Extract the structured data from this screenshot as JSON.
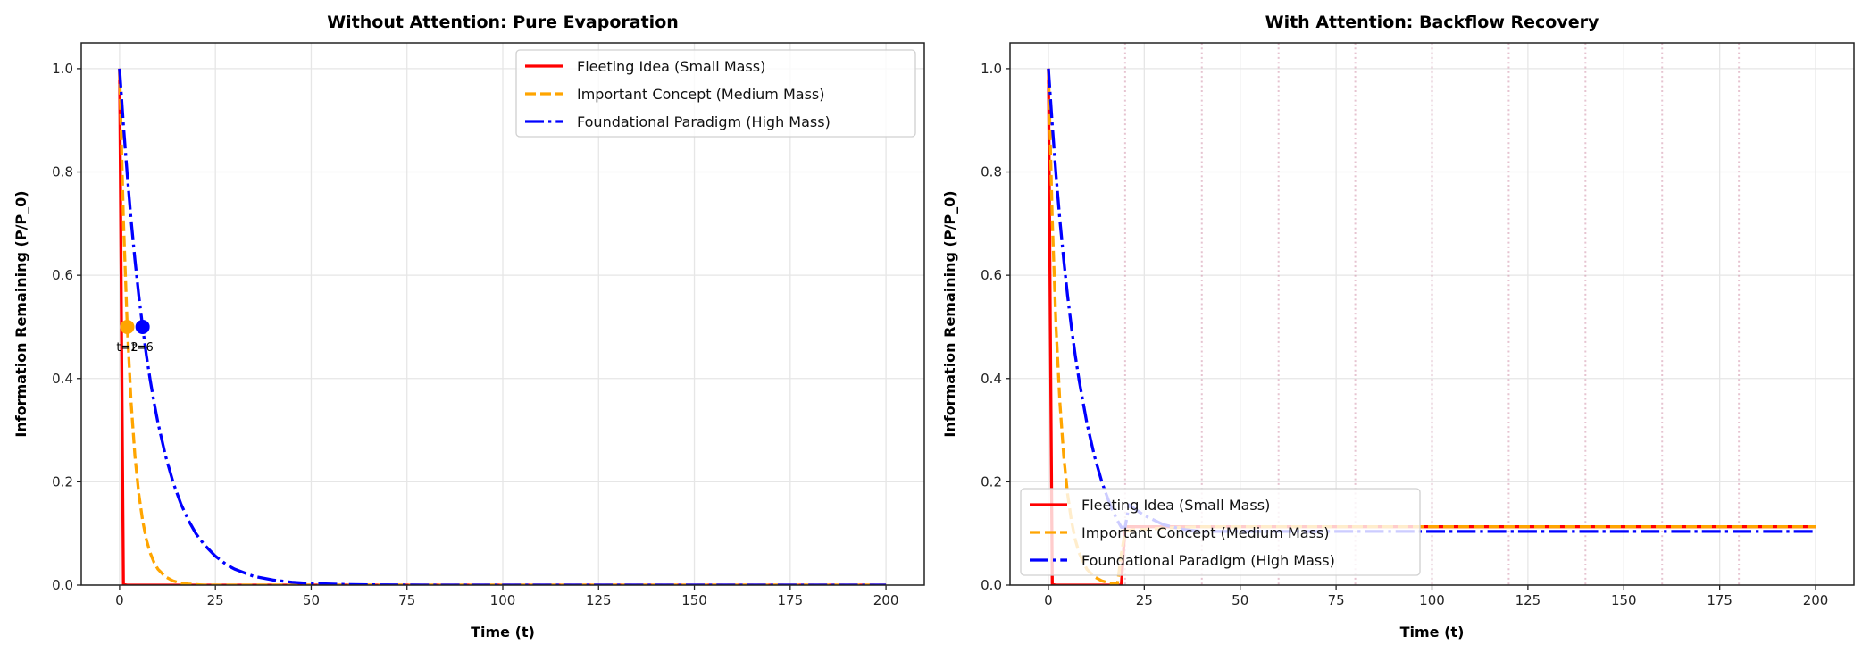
{
  "chart_data": [
    {
      "type": "line",
      "title": "Without Attention: Pure Evaporation",
      "xlabel": "Time (t)",
      "ylabel": "Information Remaining (P/P_0)",
      "xlim": [
        -10,
        210
      ],
      "ylim": [
        0,
        1.05
      ],
      "xticks": [
        0,
        25,
        50,
        75,
        100,
        125,
        150,
        175,
        200
      ],
      "yticks": [
        "0.0",
        "0.2",
        "0.4",
        "0.6",
        "0.8",
        "1.0"
      ],
      "grid": true,
      "legend": "top-right",
      "x": [
        0,
        1,
        2,
        3,
        4,
        5,
        6,
        7,
        8,
        9,
        10,
        12,
        14,
        16,
        18,
        20,
        22,
        25,
        28,
        30,
        35,
        40,
        45,
        50,
        60,
        70,
        80,
        100,
        125,
        150,
        175,
        200
      ],
      "series": [
        {
          "name": "Fleeting Idea (Small Mass)",
          "color": "#ff0000",
          "style": "solid",
          "values": [
            1,
            0.001,
            0,
            0,
            0,
            0,
            0,
            0,
            0,
            0,
            0,
            0,
            0,
            0,
            0,
            0,
            0,
            0,
            0,
            0,
            0,
            0,
            0,
            0,
            0,
            0,
            0,
            0,
            0,
            0,
            0,
            0
          ]
        },
        {
          "name": "Important Concept (Medium Mass)",
          "color": "#ffa500",
          "style": "dashed",
          "values": [
            1,
            0.707,
            0.5,
            0.354,
            0.25,
            0.177,
            0.125,
            0.088,
            0.0625,
            0.044,
            0.031,
            0.016,
            0.008,
            0.004,
            0.002,
            0.001,
            0,
            0,
            0,
            0,
            0,
            0,
            0,
            0,
            0,
            0,
            0,
            0,
            0,
            0,
            0,
            0
          ]
        },
        {
          "name": "Foundational Paradigm (High Mass)",
          "color": "#0000ff",
          "style": "dashdot",
          "values": [
            1,
            0.891,
            0.794,
            0.707,
            0.63,
            0.561,
            0.5,
            0.445,
            0.397,
            0.354,
            0.315,
            0.25,
            0.198,
            0.157,
            0.125,
            0.099,
            0.079,
            0.056,
            0.039,
            0.031,
            0.017,
            0.0098,
            0.0055,
            0.0031,
            0.001,
            0.0003,
            0,
            0,
            0,
            0,
            0,
            0
          ]
        }
      ],
      "annotations": [
        {
          "x": 2,
          "y": 0.5,
          "text": "t=2",
          "color": "#ffa500"
        },
        {
          "x": 6,
          "y": 0.5,
          "text": "t=6",
          "color": "#0000ff"
        }
      ]
    },
    {
      "type": "line",
      "title": "With Attention: Backflow Recovery",
      "xlabel": "Time (t)",
      "ylabel": "Information Remaining (P/P_0)",
      "xlim": [
        -10,
        210
      ],
      "ylim": [
        0,
        1.05
      ],
      "xticks": [
        0,
        25,
        50,
        75,
        100,
        125,
        150,
        175,
        200
      ],
      "yticks": [
        "0.0",
        "0.2",
        "0.4",
        "0.6",
        "0.8",
        "1.0"
      ],
      "grid": true,
      "legend": "lower-left",
      "attention_events": [
        20,
        40,
        60,
        80,
        100,
        120,
        140,
        160,
        180
      ],
      "attention_color": "#c87a96",
      "x": [
        0,
        1,
        2,
        3,
        4,
        5,
        6,
        7,
        8,
        10,
        12,
        14,
        16,
        17,
        18,
        19,
        20,
        21,
        22,
        25,
        30,
        35,
        40,
        50,
        60,
        80,
        100,
        125,
        150,
        175,
        200
      ],
      "series": [
        {
          "name": "Fleeting Idea (Small Mass)",
          "color": "#ff0000",
          "style": "solid",
          "values": [
            1,
            0.001,
            0,
            0,
            0,
            0,
            0,
            0,
            0,
            0,
            0,
            0,
            0,
            0,
            0,
            0,
            0.113,
            0.113,
            0.113,
            0.113,
            0.113,
            0.113,
            0.113,
            0.113,
            0.113,
            0.113,
            0.113,
            0.113,
            0.113,
            0.113,
            0.113
          ]
        },
        {
          "name": "Important Concept (Medium Mass)",
          "color": "#ffa500",
          "style": "dashed",
          "values": [
            1,
            0.707,
            0.5,
            0.354,
            0.25,
            0.177,
            0.125,
            0.088,
            0.0625,
            0.031,
            0.016,
            0.008,
            0.004,
            0.003,
            0.002,
            0.06,
            0.105,
            0.106,
            0.107,
            0.108,
            0.11,
            0.112,
            0.113,
            0.113,
            0.113,
            0.113,
            0.113,
            0.113,
            0.113,
            0.113,
            0.113
          ]
        },
        {
          "name": "Foundational Paradigm (High Mass)",
          "color": "#0000ff",
          "style": "dashdot",
          "values": [
            1,
            0.891,
            0.794,
            0.707,
            0.63,
            0.561,
            0.5,
            0.445,
            0.397,
            0.315,
            0.25,
            0.198,
            0.157,
            0.14,
            0.125,
            0.112,
            0.112,
            0.155,
            0.15,
            0.135,
            0.117,
            0.108,
            0.104,
            0.104,
            0.104,
            0.104,
            0.104,
            0.104,
            0.104,
            0.104,
            0.104
          ]
        }
      ]
    }
  ]
}
